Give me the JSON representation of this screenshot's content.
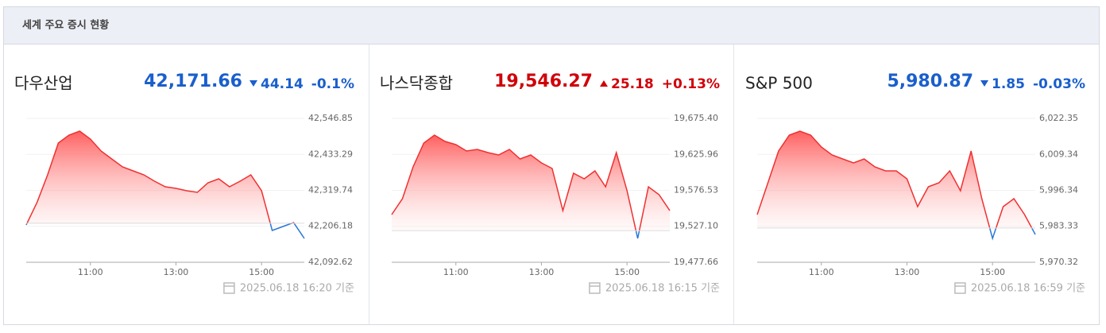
{
  "header": {
    "title": "세계 주요 증시 현황"
  },
  "panels": [
    {
      "name": "다우산업",
      "price": "42,171.66",
      "change": "44.14",
      "change_rate": "-0.1%",
      "direction": "down",
      "updated": "2025.06.18 16:20 기준"
    },
    {
      "name": "나스닥종합",
      "price": "19,546.27",
      "change": "25.18",
      "change_rate": "+0.13%",
      "direction": "up",
      "updated": "2025.06.18 16:15 기준"
    },
    {
      "name": "S&P 500",
      "price": "5,980.87",
      "change": "1.85",
      "change_rate": "-0.03%",
      "direction": "down",
      "updated": "2025.06.18 16:59 기준"
    }
  ],
  "chart_data": [
    {
      "type": "line",
      "x": [
        9.5,
        9.75,
        10,
        10.25,
        10.5,
        10.75,
        11,
        11.25,
        11.5,
        11.75,
        12,
        12.25,
        12.5,
        12.75,
        13,
        13.25,
        13.5,
        13.75,
        14,
        14.25,
        14.5,
        14.75,
        15,
        15.25,
        15.5,
        15.75,
        16
      ],
      "series": [
        {
          "values": [
            42210.6,
            42280.8,
            42368.7,
            42469.1,
            42494.1,
            42506.7,
            42481.6,
            42444.0,
            42418.9,
            42393.8,
            42381.2,
            42368.7,
            42348.6,
            42331.0,
            42326.0,
            42318.5,
            42313.5,
            42343.6,
            42356.1,
            42331.0,
            42348.6,
            42368.7,
            42318.5,
            42193.0,
            42205.6,
            42218.1,
            42168.0
          ]
        }
      ],
      "baseline": 42215.8,
      "xlim": [
        9.5,
        16
      ],
      "xticks": [
        {
          "value": 11,
          "label": "11:00"
        },
        {
          "value": 13,
          "label": "13:00"
        },
        {
          "value": 15,
          "label": "15:00"
        }
      ],
      "ylim": [
        42092.62,
        42546.85
      ],
      "yticks": [
        {
          "value": 42546.85,
          "label": "42,546.85"
        },
        {
          "value": 42433.29,
          "label": "42,433.29"
        },
        {
          "value": 42319.74,
          "label": "42,319.74"
        },
        {
          "value": 42206.18,
          "label": "42,206.18"
        },
        {
          "value": 42092.62,
          "label": "42,092.62"
        }
      ]
    },
    {
      "type": "line",
      "x": [
        9.5,
        9.75,
        10,
        10.25,
        10.5,
        10.75,
        11,
        11.25,
        11.5,
        11.75,
        12,
        12.25,
        12.5,
        12.75,
        13,
        13.25,
        13.5,
        13.75,
        14,
        14.25,
        14.5,
        14.75,
        15,
        15.25,
        15.5,
        15.75,
        16
      ],
      "series": [
        {
          "values": [
            19543.2,
            19565.1,
            19608.8,
            19641.5,
            19652.5,
            19643.7,
            19639.3,
            19630.6,
            19632.8,
            19628.4,
            19625.1,
            19632.8,
            19619.7,
            19625.1,
            19614.2,
            19606.6,
            19548.7,
            19600.0,
            19592.4,
            19603.3,
            19581.4,
            19628.4,
            19576.0,
            19510.4,
            19581.4,
            19570.5,
            19548.7
          ]
        }
      ],
      "baseline": 19521.09,
      "xlim": [
        9.5,
        16
      ],
      "xticks": [
        {
          "value": 11,
          "label": "11:00"
        },
        {
          "value": 13,
          "label": "13:00"
        },
        {
          "value": 15,
          "label": "15:00"
        }
      ],
      "ylim": [
        19477.66,
        19675.4
      ],
      "yticks": [
        {
          "value": 19675.4,
          "label": "19,675.40"
        },
        {
          "value": 19625.96,
          "label": "19,625.96"
        },
        {
          "value": 19576.53,
          "label": "19,576.53"
        },
        {
          "value": 19527.1,
          "label": "19,527.10"
        },
        {
          "value": 19477.66,
          "label": "19,477.66"
        }
      ]
    },
    {
      "type": "line",
      "x": [
        9.5,
        9.75,
        10,
        10.25,
        10.5,
        10.75,
        11,
        11.25,
        11.5,
        11.75,
        12,
        12.25,
        12.5,
        12.75,
        13,
        13.25,
        13.5,
        13.75,
        14,
        14.25,
        14.5,
        14.75,
        15,
        15.25,
        15.5,
        15.75,
        16
      ],
      "series": [
        {
          "values": [
            5987.57,
            5999.07,
            6010.56,
            6016.31,
            6017.75,
            6016.31,
            6012.0,
            6009.13,
            6007.69,
            6006.25,
            6007.69,
            6004.81,
            6003.38,
            6003.38,
            6000.5,
            5990.44,
            5997.63,
            5999.07,
            6003.38,
            5996.19,
            6010.56,
            5993.32,
            5978.94,
            5990.44,
            5993.32,
            5987.57,
            5980.38
          ]
        }
      ],
      "baseline": 5982.72,
      "xlim": [
        9.5,
        16
      ],
      "xticks": [
        {
          "value": 11,
          "label": "11:00"
        },
        {
          "value": 13,
          "label": "13:00"
        },
        {
          "value": 15,
          "label": "15:00"
        }
      ],
      "ylim": [
        5970.32,
        6022.35
      ],
      "yticks": [
        {
          "value": 6022.35,
          "label": "6,022.35"
        },
        {
          "value": 6009.34,
          "label": "6,009.34"
        },
        {
          "value": 5996.34,
          "label": "5,996.34"
        },
        {
          "value": 5983.33,
          "label": "5,983.33"
        },
        {
          "value": 5970.32,
          "label": "5,970.32"
        }
      ]
    }
  ]
}
